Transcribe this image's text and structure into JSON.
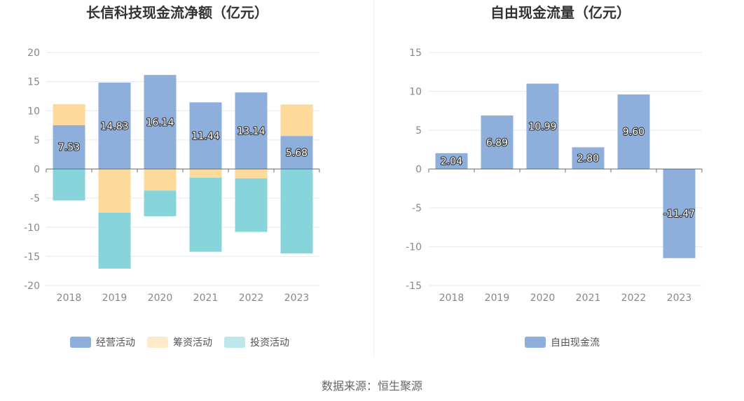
{
  "source_label": "数据来源：恒生聚源",
  "chart_data": [
    {
      "type": "bar",
      "stacked": true,
      "title": "长信科技现金流净额（亿元）",
      "categories": [
        "2018",
        "2019",
        "2020",
        "2021",
        "2022",
        "2023"
      ],
      "ylim": [
        -20,
        20
      ],
      "yticks": [
        20,
        15,
        10,
        5,
        0,
        -5,
        -10,
        -15,
        -20
      ],
      "grid": true,
      "legend_position": "bottom",
      "series": [
        {
          "name": "经营活动",
          "color": "#8eaedc",
          "values": [
            7.53,
            14.83,
            16.14,
            11.44,
            13.14,
            5.68
          ],
          "labels": [
            "7.53",
            "14.83",
            "16.14",
            "11.44",
            "13.14",
            "5.68"
          ]
        },
        {
          "name": "筹资活动",
          "color": "#fdd99b",
          "values": [
            3.6,
            -7.5,
            -3.7,
            -1.5,
            -1.6,
            5.4
          ]
        },
        {
          "name": "投资活动",
          "color": "#87d5da",
          "values": [
            -5.4,
            -9.6,
            -4.4,
            -12.7,
            -9.2,
            -14.5
          ]
        }
      ]
    },
    {
      "type": "bar",
      "title": "自由现金流量（亿元）",
      "categories": [
        "2018",
        "2019",
        "2020",
        "2021",
        "2022",
        "2023"
      ],
      "ylim": [
        -15,
        15
      ],
      "yticks": [
        15,
        10,
        5,
        0,
        -5,
        -10,
        -15
      ],
      "grid": true,
      "legend_position": "bottom",
      "series": [
        {
          "name": "自由现金流",
          "color": "#8eaedc",
          "values": [
            2.04,
            6.89,
            10.99,
            2.8,
            9.6,
            -11.47
          ],
          "labels": [
            "2.04",
            "6.89",
            "10.99",
            "2.80",
            "9.60",
            "-11.47"
          ]
        }
      ]
    }
  ]
}
